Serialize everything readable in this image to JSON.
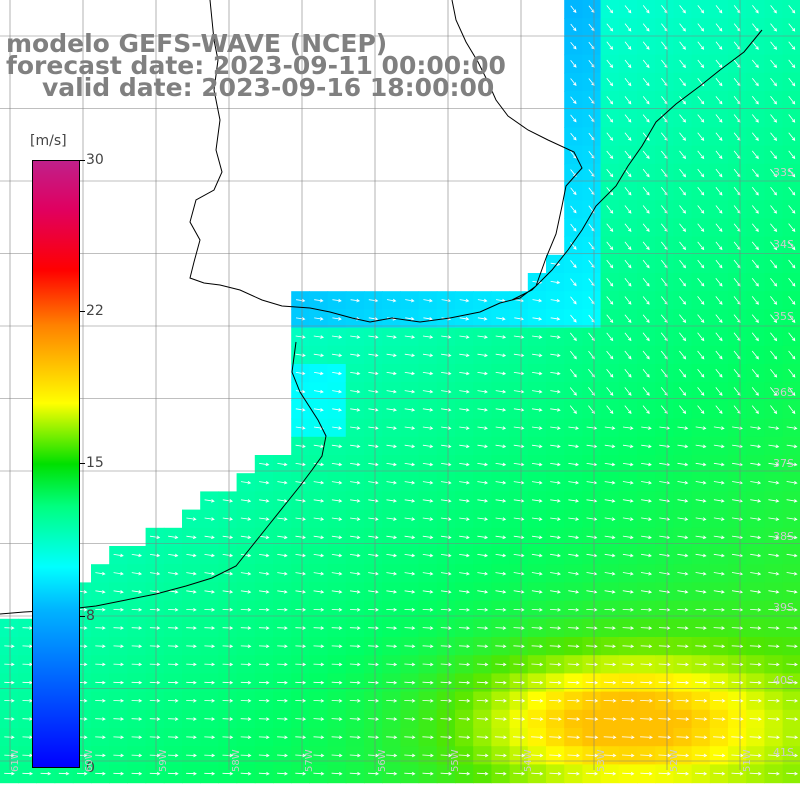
{
  "title": {
    "line1": "modelo GEFS-WAVE (NCEP)",
    "line2": "forecast date: 2023-09-11 00:00:00",
    "line3": "valid date: 2023-09-16 18:00:00"
  },
  "colorbar": {
    "units": "[m/s]",
    "ticks": [
      "30",
      "22",
      "15",
      "8",
      "0"
    ],
    "tick_values": [
      30,
      22,
      15,
      8,
      0
    ],
    "range": [
      0,
      30
    ],
    "colors": [
      "#0000ff",
      "#00b4ff",
      "#00ffff",
      "#00ff80",
      "#00e000",
      "#ffff00",
      "#ff8000",
      "#ff0000",
      "#c0208a"
    ]
  },
  "lat_labels": [
    "33S",
    "34S",
    "35S",
    "36S",
    "37S",
    "38S",
    "39S",
    "40S",
    "41S"
  ],
  "lon_labels": [
    "61W",
    "60W",
    "59W",
    "58W",
    "57W",
    "56W",
    "55W",
    "54W",
    "53W",
    "52W",
    "51W"
  ],
  "colors": {
    "land": "#ffffff",
    "coast": "#000000",
    "grid": "#808080",
    "vectors": "#ffffff",
    "title_text": "#808080"
  }
}
